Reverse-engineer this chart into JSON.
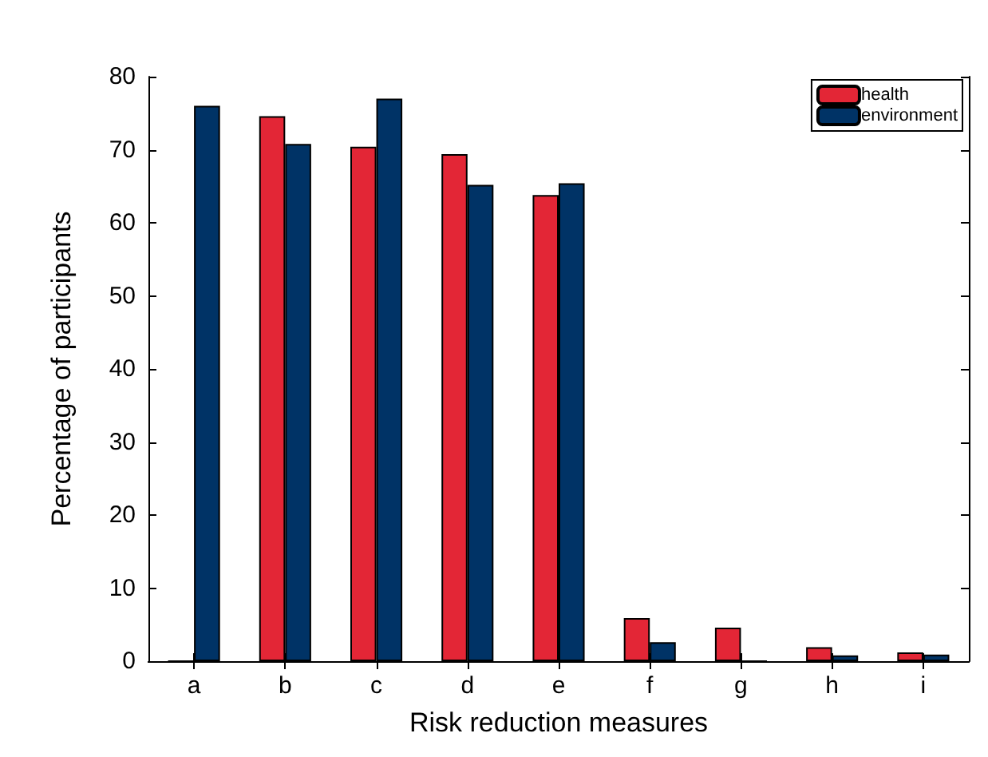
{
  "chart_data": {
    "type": "bar",
    "xlabel": "Risk reduction measures",
    "ylabel": "Percentage of participants",
    "categories": [
      "a",
      "b",
      "c",
      "d",
      "e",
      "f",
      "g",
      "h",
      "i"
    ],
    "series": [
      {
        "name": "health",
        "color": "#e32636",
        "values": [
          0,
          74.6,
          70.4,
          69.4,
          63.8,
          5.9,
          4.6,
          1.9,
          1.2
        ]
      },
      {
        "name": "environment",
        "color": "#003366",
        "values": [
          76,
          70.8,
          77,
          65.2,
          65.4,
          2.6,
          0,
          0.8,
          0.9
        ]
      }
    ],
    "ylim": [
      0,
      80
    ],
    "yticks": [
      0,
      10,
      20,
      30,
      40,
      50,
      60,
      70,
      80
    ],
    "grid": false,
    "legend": "top right"
  }
}
